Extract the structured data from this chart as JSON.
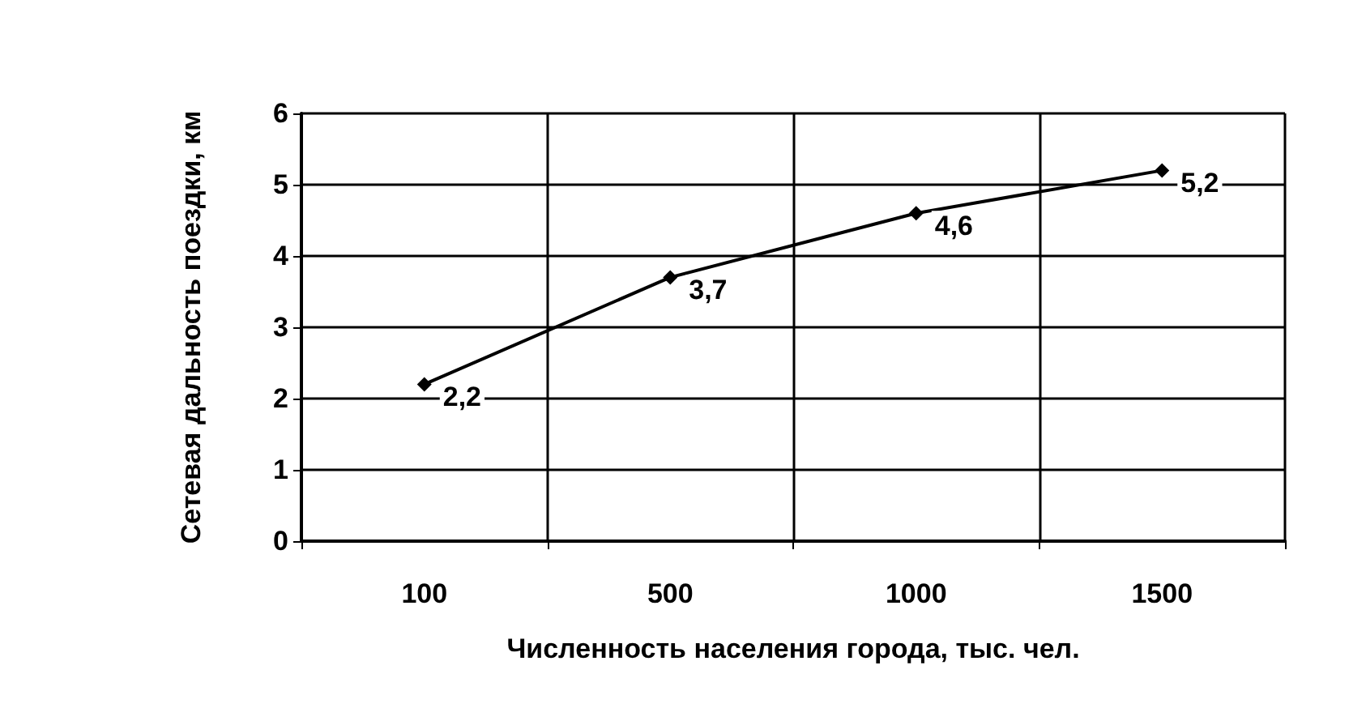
{
  "chart_data": {
    "type": "line",
    "xlabel": "Численность населения города, тыс. чел.",
    "ylabel": "Сетевая дальность поездки, км",
    "categories": [
      "100",
      "500",
      "1000",
      "1500"
    ],
    "series": [
      {
        "color": "#000000",
        "values": [
          2.2,
          3.7,
          4.6,
          5.2
        ],
        "value_labels": [
          "2,2",
          "3,7",
          "4,6",
          "5,2"
        ]
      }
    ],
    "ylim": [
      0,
      6
    ],
    "yticks": [
      0,
      1,
      2,
      3,
      4,
      5,
      6
    ],
    "grid": true,
    "marker": "diamond",
    "line_style": "solid"
  }
}
